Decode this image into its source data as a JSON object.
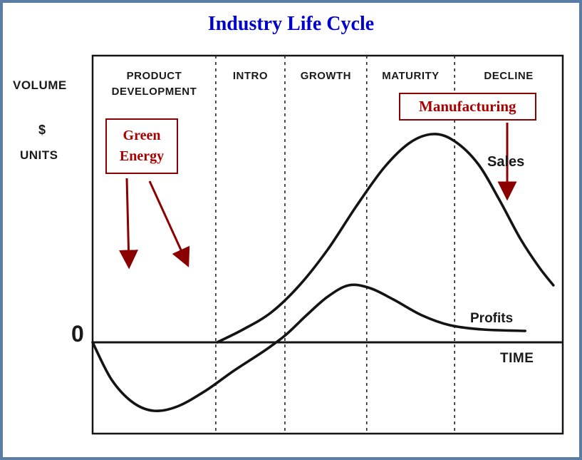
{
  "title": "Industry Life Cycle",
  "colors": {
    "frame_border": "#5a7da5",
    "title_text": "#0000cc",
    "annotation_red": "#aa0000",
    "annotation_border": "#8b0000",
    "curve_black": "#141414"
  },
  "axis_labels": {
    "volume": "VOLUME",
    "dollar": "$",
    "units": "UNITS",
    "zero": "0",
    "time": "TIME"
  },
  "annotations": {
    "green_energy": {
      "label": "Green Energy"
    },
    "manufacturing": {
      "label": "Manufacturing"
    }
  },
  "chart_data": {
    "type": "line",
    "title": "Industry Life Cycle",
    "xlabel": "TIME",
    "ylabel": "VOLUME / $ / UNITS",
    "x_axis": {
      "unit": "percent of life-cycle timeline",
      "range": [
        0,
        100
      ]
    },
    "y_axis": {
      "unit": "relative volume, 0 = break-even baseline",
      "range": [
        -1.3,
        3.3
      ]
    },
    "grid": false,
    "legend_position": "labels at right end of each curve",
    "phases": [
      "PRODUCT DEVELOPMENT",
      "INTRO",
      "GROWTH",
      "MATURITY",
      "DECLINE"
    ],
    "phase_boundaries_pct": [
      0,
      26.2,
      40.9,
      58.3,
      77.0,
      100
    ],
    "series": [
      {
        "name": "Sales",
        "points": [
          [
            26.5,
            0
          ],
          [
            32,
            0.18
          ],
          [
            38,
            0.42
          ],
          [
            44,
            0.8
          ],
          [
            50,
            1.3
          ],
          [
            56,
            1.9
          ],
          [
            62,
            2.45
          ],
          [
            67.5,
            2.8
          ],
          [
            72.5,
            2.92
          ],
          [
            77,
            2.82
          ],
          [
            82,
            2.5
          ],
          [
            86.5,
            2.0
          ],
          [
            91,
            1.45
          ],
          [
            95,
            1.05
          ],
          [
            98,
            0.8
          ]
        ]
      },
      {
        "name": "Profits",
        "points": [
          [
            0,
            0
          ],
          [
            4,
            -0.52
          ],
          [
            8.5,
            -0.84
          ],
          [
            13,
            -0.96
          ],
          [
            18,
            -0.9
          ],
          [
            24,
            -0.68
          ],
          [
            30,
            -0.4
          ],
          [
            36.5,
            -0.12
          ],
          [
            41,
            0.1
          ],
          [
            45.5,
            0.38
          ],
          [
            50,
            0.64
          ],
          [
            54.5,
            0.8
          ],
          [
            59,
            0.76
          ],
          [
            64,
            0.6
          ],
          [
            70,
            0.38
          ],
          [
            76,
            0.24
          ],
          [
            83,
            0.18
          ],
          [
            92,
            0.16
          ]
        ]
      }
    ]
  }
}
